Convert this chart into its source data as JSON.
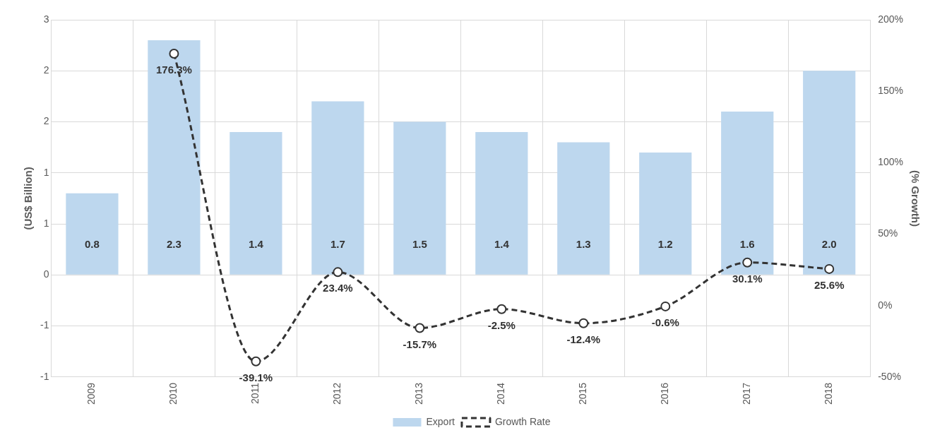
{
  "chart_data": {
    "type": "bar",
    "ylabel": "(US$ Billion)",
    "y2label": "(% Growth)",
    "categories": [
      "2009",
      "2010",
      "2011",
      "2012",
      "2013",
      "2014",
      "2015",
      "2016",
      "2017",
      "2018"
    ],
    "series": [
      {
        "name": "Export",
        "color": "#bdd7ee",
        "values": [
          0.8,
          2.3,
          1.4,
          1.7,
          1.5,
          1.4,
          1.3,
          1.2,
          1.6,
          2.0
        ],
        "value_labels": [
          "0.8",
          "2.3",
          "1.4",
          "1.7",
          "1.5",
          "1.4",
          "1.3",
          "1.2",
          "1.6",
          "2.0"
        ]
      },
      {
        "name": "Growth Rate",
        "type": "line",
        "axis": "y2",
        "color": "#333333",
        "line_style": "dashed",
        "marker": "circle",
        "values": [
          null,
          176.3,
          -39.1,
          23.4,
          -15.7,
          -2.5,
          -12.4,
          -0.6,
          30.1,
          25.6
        ],
        "value_labels": [
          null,
          "176.3%",
          "-39.1%",
          "23.4%",
          "-15.7%",
          "-2.5%",
          "-12.4%",
          "-0.6%",
          "30.1%",
          "25.6%"
        ]
      }
    ],
    "ylim": [
      -1,
      2.5
    ],
    "yticks": [
      {
        "value": -1,
        "label": "-1"
      },
      {
        "value": -0.5,
        "label": "-1"
      },
      {
        "value": 0,
        "label": "0"
      },
      {
        "value": 0.5,
        "label": "1"
      },
      {
        "value": 1,
        "label": "1"
      },
      {
        "value": 1.5,
        "label": "2"
      },
      {
        "value": 2,
        "label": "2"
      },
      {
        "value": 2.5,
        "label": "3"
      }
    ],
    "y2lim": [
      -50,
      200
    ],
    "y2ticks": [
      {
        "value": -50,
        "label": "-50%"
      },
      {
        "value": 0,
        "label": "0%"
      },
      {
        "value": 50,
        "label": "50%"
      },
      {
        "value": 100,
        "label": "100%"
      },
      {
        "value": 150,
        "label": "150%"
      },
      {
        "value": 200,
        "label": "200%"
      }
    ],
    "grid": true,
    "legend": "bottom"
  }
}
